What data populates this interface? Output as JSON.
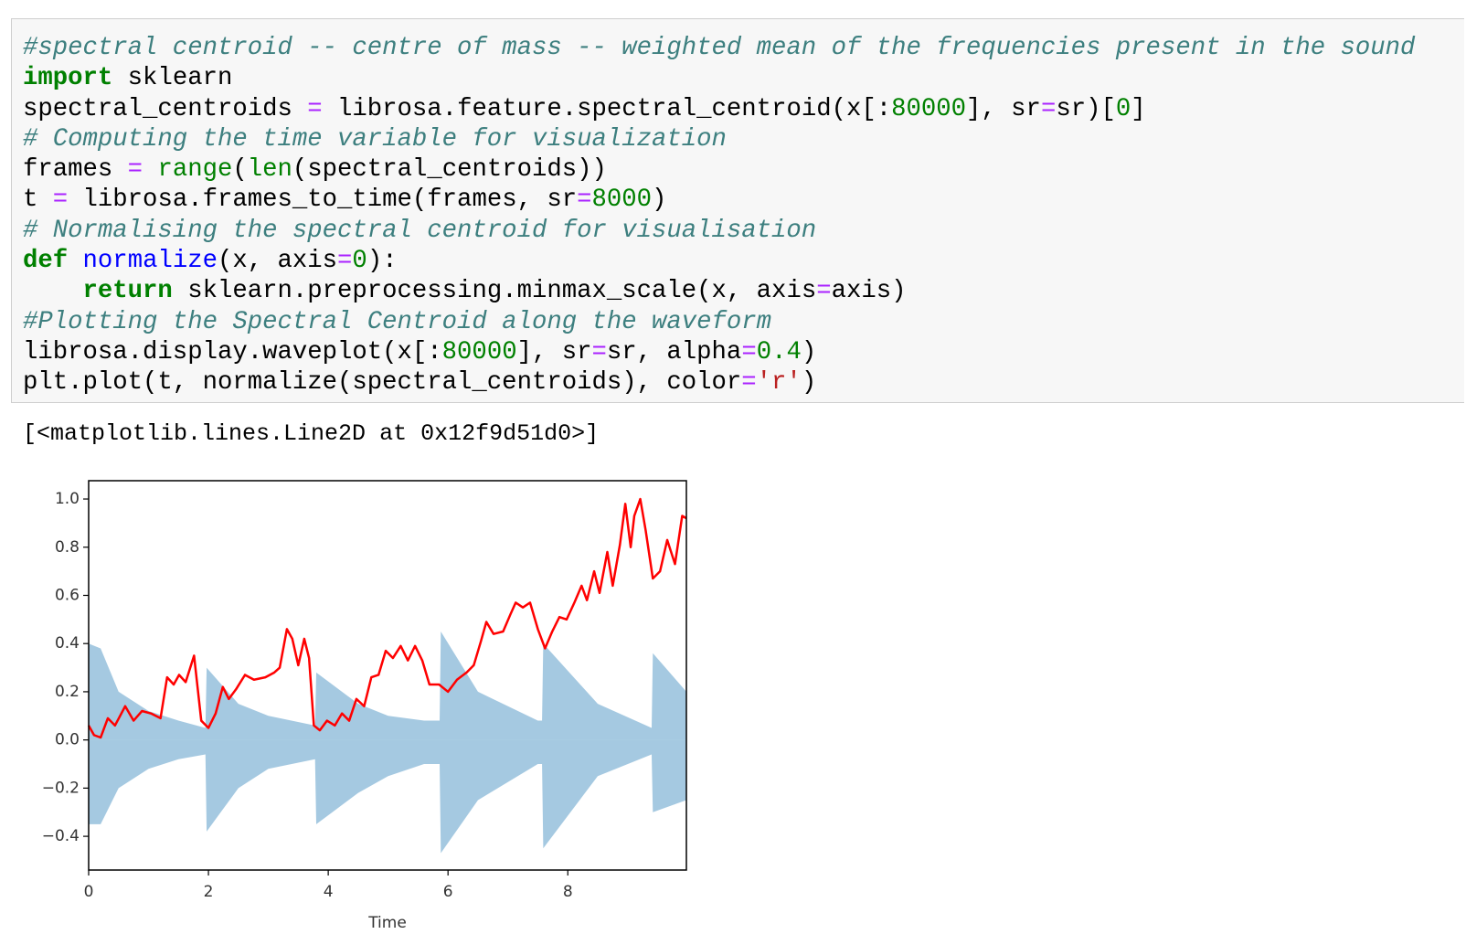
{
  "code": {
    "lines": [
      [
        {
          "t": "#spectral centroid -- centre of mass -- weighted mean of the frequencies present in the sound",
          "color": "#3d7f7f",
          "style": "italic"
        }
      ],
      [
        {
          "t": "import",
          "color": "#008000",
          "style": "bold"
        },
        {
          "t": " sklearn",
          "color": "#000000"
        }
      ],
      [
        {
          "t": "spectral_centroids ",
          "color": "#000000"
        },
        {
          "t": "=",
          "color": "#aa22ff"
        },
        {
          "t": " librosa.feature.spectral_centroid(x[:",
          "color": "#000000"
        },
        {
          "t": "80000",
          "color": "#008000"
        },
        {
          "t": "], sr",
          "color": "#000000"
        },
        {
          "t": "=",
          "color": "#aa22ff"
        },
        {
          "t": "sr)[",
          "color": "#000000"
        },
        {
          "t": "0",
          "color": "#008000"
        },
        {
          "t": "]",
          "color": "#000000"
        }
      ],
      [
        {
          "t": "# Computing the time variable for visualization",
          "color": "#3d7f7f",
          "style": "italic"
        }
      ],
      [
        {
          "t": "frames ",
          "color": "#000000"
        },
        {
          "t": "=",
          "color": "#aa22ff"
        },
        {
          "t": " ",
          "color": "#000000"
        },
        {
          "t": "range",
          "color": "#008000"
        },
        {
          "t": "(",
          "color": "#000000"
        },
        {
          "t": "len",
          "color": "#008000"
        },
        {
          "t": "(spectral_centroids))",
          "color": "#000000"
        }
      ],
      [
        {
          "t": "t ",
          "color": "#000000"
        },
        {
          "t": "=",
          "color": "#aa22ff"
        },
        {
          "t": " librosa.frames_to_time(frames, sr",
          "color": "#000000"
        },
        {
          "t": "=",
          "color": "#aa22ff"
        },
        {
          "t": "8000",
          "color": "#008000"
        },
        {
          "t": ")",
          "color": "#000000"
        }
      ],
      [
        {
          "t": "# Normalising the spectral centroid for visualisation",
          "color": "#3d7f7f",
          "style": "italic"
        }
      ],
      [
        {
          "t": "def",
          "color": "#008000",
          "style": "bold"
        },
        {
          "t": " ",
          "color": "#000000"
        },
        {
          "t": "normalize",
          "color": "#0000ff"
        },
        {
          "t": "(x, axis",
          "color": "#000000"
        },
        {
          "t": "=",
          "color": "#aa22ff"
        },
        {
          "t": "0",
          "color": "#008000"
        },
        {
          "t": "):",
          "color": "#000000"
        }
      ],
      [
        {
          "t": "    ",
          "color": "#000000"
        },
        {
          "t": "return",
          "color": "#008000",
          "style": "bold"
        },
        {
          "t": " sklearn.preprocessing.minmax_scale(x, axis",
          "color": "#000000"
        },
        {
          "t": "=",
          "color": "#aa22ff"
        },
        {
          "t": "axis)",
          "color": "#000000"
        }
      ],
      [
        {
          "t": "#Plotting the Spectral Centroid along the waveform",
          "color": "#3d7f7f",
          "style": "italic"
        }
      ],
      [
        {
          "t": "librosa.display.waveplot(x[:",
          "color": "#000000"
        },
        {
          "t": "80000",
          "color": "#008000"
        },
        {
          "t": "], sr",
          "color": "#000000"
        },
        {
          "t": "=",
          "color": "#aa22ff"
        },
        {
          "t": "sr, alpha",
          "color": "#000000"
        },
        {
          "t": "=",
          "color": "#aa22ff"
        },
        {
          "t": "0.4",
          "color": "#008000"
        },
        {
          "t": ")",
          "color": "#000000"
        }
      ],
      [
        {
          "t": "plt.plot(t, normalize(spectral_centroids), color",
          "color": "#000000"
        },
        {
          "t": "=",
          "color": "#aa22ff"
        },
        {
          "t": "'r'",
          "color": "#ba2121"
        },
        {
          "t": ")",
          "color": "#000000"
        }
      ]
    ]
  },
  "output": "[<matplotlib.lines.Line2D at 0x12f9d51d0>]",
  "chart_data": {
    "type": "line",
    "xlabel": "Time",
    "xlim": [
      0,
      9.98
    ],
    "ylim": [
      -0.54,
      1.076
    ],
    "xticks": [
      0,
      2,
      4,
      6,
      8
    ],
    "yticks": [
      {
        "value": -0.4,
        "label": "−0.4"
      },
      {
        "value": -0.2,
        "label": "−0.2"
      },
      {
        "value": 0,
        "label": "0.0"
      },
      0.2,
      0.4,
      0.6,
      0.8,
      {
        "value": 1,
        "label": "1.0"
      }
    ],
    "waveform": {
      "color": "#1f77b4",
      "alpha": 0.4,
      "x": [
        0,
        0.2,
        0.5,
        1.0,
        1.5,
        1.95,
        1.97,
        2.5,
        3.0,
        3.78,
        3.8,
        4.5,
        5.0,
        5.6,
        5.86,
        5.88,
        6.5,
        7.5,
        7.57,
        7.59,
        8.5,
        9.4,
        9.42,
        9.98
      ],
      "upper": [
        0.4,
        0.38,
        0.2,
        0.12,
        0.08,
        0.05,
        0.3,
        0.15,
        0.1,
        0.06,
        0.28,
        0.15,
        0.1,
        0.08,
        0.08,
        0.45,
        0.2,
        0.08,
        0.08,
        0.4,
        0.15,
        0.05,
        0.36,
        0.2
      ],
      "lower": [
        -0.35,
        -0.35,
        -0.2,
        -0.12,
        -0.08,
        -0.06,
        -0.38,
        -0.2,
        -0.12,
        -0.08,
        -0.35,
        -0.22,
        -0.15,
        -0.1,
        -0.1,
        -0.47,
        -0.25,
        -0.1,
        -0.1,
        -0.45,
        -0.15,
        -0.06,
        -0.3,
        -0.25
      ]
    },
    "series": [
      {
        "color": "#ff0000",
        "x": [
          0,
          0.09,
          0.2,
          0.32,
          0.44,
          0.61,
          0.75,
          0.89,
          1.04,
          1.2,
          1.31,
          1.42,
          1.51,
          1.62,
          1.76,
          1.88,
          2.0,
          2.12,
          2.24,
          2.34,
          2.46,
          2.61,
          2.76,
          2.95,
          3.1,
          3.19,
          3.31,
          3.4,
          3.5,
          3.6,
          3.68,
          3.76,
          3.86,
          3.98,
          4.11,
          4.23,
          4.35,
          4.47,
          4.6,
          4.72,
          4.84,
          4.96,
          5.08,
          5.21,
          5.33,
          5.45,
          5.57,
          5.69,
          5.85,
          6.0,
          6.15,
          6.31,
          6.43,
          6.55,
          6.64,
          6.76,
          6.92,
          7.04,
          7.13,
          7.25,
          7.37,
          7.5,
          7.62,
          7.74,
          7.86,
          7.98,
          8.11,
          8.23,
          8.32,
          8.44,
          8.53,
          8.66,
          8.75,
          8.87,
          8.96,
          9.05,
          9.11,
          9.21,
          9.3,
          9.42,
          9.54,
          9.66,
          9.79,
          9.91,
          9.98
        ],
        "values": [
          0.06,
          0.02,
          0.01,
          0.09,
          0.06,
          0.14,
          0.08,
          0.12,
          0.11,
          0.09,
          0.26,
          0.23,
          0.27,
          0.24,
          0.35,
          0.08,
          0.05,
          0.11,
          0.22,
          0.17,
          0.21,
          0.27,
          0.25,
          0.26,
          0.28,
          0.3,
          0.46,
          0.42,
          0.31,
          0.42,
          0.34,
          0.06,
          0.04,
          0.08,
          0.06,
          0.11,
          0.08,
          0.17,
          0.14,
          0.26,
          0.27,
          0.37,
          0.34,
          0.39,
          0.33,
          0.39,
          0.33,
          0.23,
          0.23,
          0.2,
          0.25,
          0.28,
          0.31,
          0.41,
          0.49,
          0.44,
          0.45,
          0.52,
          0.57,
          0.55,
          0.57,
          0.46,
          0.38,
          0.45,
          0.51,
          0.5,
          0.57,
          0.64,
          0.58,
          0.7,
          0.61,
          0.78,
          0.64,
          0.81,
          0.98,
          0.8,
          0.93,
          1.0,
          0.87,
          0.67,
          0.7,
          0.83,
          0.73,
          0.93,
          0.92
        ]
      }
    ]
  }
}
